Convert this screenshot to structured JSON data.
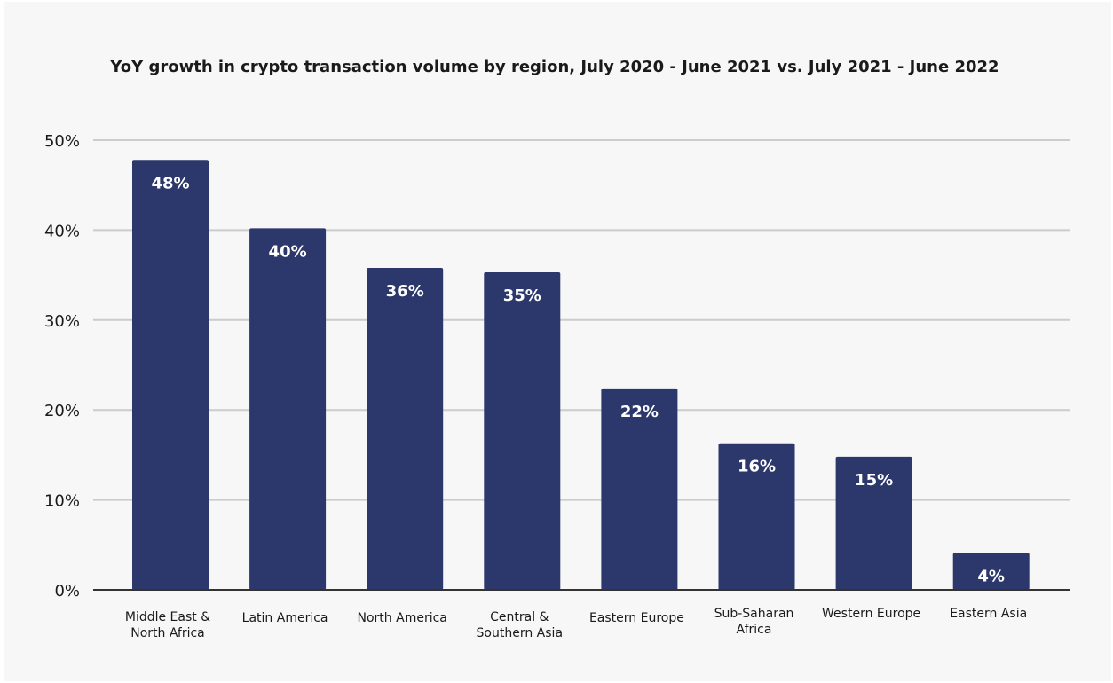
{
  "chart_data": {
    "type": "bar",
    "title": "YoY growth in crypto transaction volume by region, July 2020 - June 2021 vs. July 2021 - June 2022",
    "xlabel": "",
    "ylabel": "",
    "ylim": [
      0,
      50
    ],
    "yticks": [
      0,
      10,
      20,
      30,
      40,
      50
    ],
    "ytick_labels": [
      "0%",
      "10%",
      "20%",
      "30%",
      "40%",
      "50%"
    ],
    "grid": true,
    "categories": [
      [
        "Middle East &",
        "North Africa"
      ],
      [
        "Latin America"
      ],
      [
        "North America"
      ],
      [
        "Central &",
        "Southern Asia"
      ],
      [
        "Eastern Europe"
      ],
      [
        "Sub-Saharan",
        "Africa"
      ],
      [
        "Western Europe"
      ],
      [
        "Eastern Asia"
      ]
    ],
    "values": [
      48,
      40,
      36,
      35,
      22,
      16,
      15,
      4
    ],
    "data_labels": [
      "48%",
      "40%",
      "36%",
      "35%",
      "22%",
      "16%",
      "15%",
      "4%"
    ],
    "bar_values_read": [
      47.8,
      40.2,
      35.8,
      35.3,
      22.4,
      16.3,
      14.8,
      4.1
    ],
    "colors": {
      "bar": "#2c376b",
      "background": "#f7f7f7"
    }
  }
}
